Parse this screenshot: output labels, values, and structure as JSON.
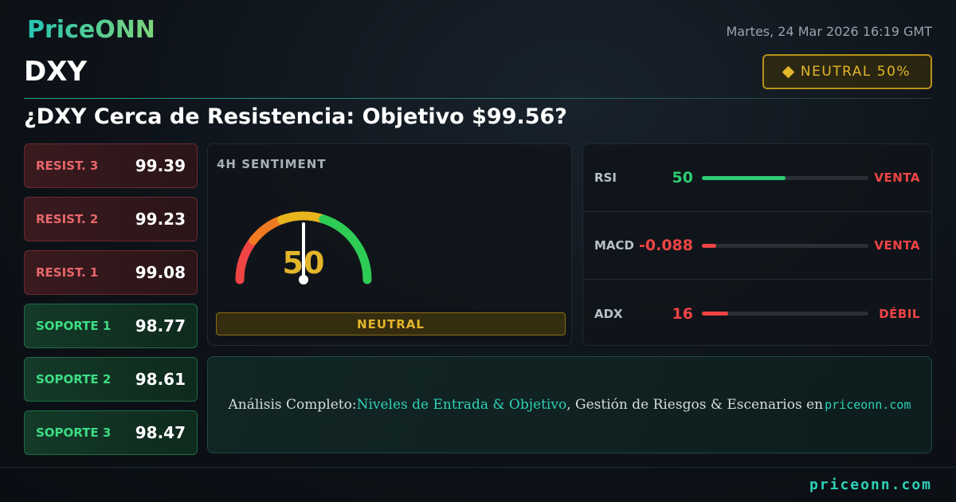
{
  "brand": "PriceONN",
  "date": "Martes, 24 Mar 2026 16:19 GMT",
  "symbol": "DXY",
  "badge": "NEUTRAL 50%",
  "headline": "¿DXY Cerca de Resistencia: Objetivo $99.56?",
  "levels": [
    {
      "label": "RESIST. 3",
      "value": 99.39,
      "color": "#e8676b"
    },
    {
      "label": "RESIST. 2",
      "value": 99.23,
      "color": "#e8676b"
    },
    {
      "label": "RESIST. 1",
      "value": 99.08,
      "color": "#e8676b"
    },
    {
      "label": "SOPORTE 1",
      "value": 98.77,
      "color": "#3ddc84"
    },
    {
      "label": "SOPORTE 2",
      "value": 98.61,
      "color": "#3ddc84"
    },
    {
      "label": "SOPORTE 3",
      "value": 98.47,
      "color": "#3ddc84"
    }
  ],
  "sentiment": {
    "title": "4H SENTIMENT",
    "value": 50,
    "label": "NEUTRAL"
  },
  "indicators": [
    {
      "name": "RSI",
      "value": 50,
      "signal": "VENTA",
      "color": "#2ecc71"
    },
    {
      "name": "MACD",
      "value": -0.088,
      "signal": "VENTA",
      "color": "#ef4444"
    },
    {
      "name": "ADX",
      "value": 16,
      "signal": "DÉBIL",
      "color": "#ef4444"
    }
  ],
  "cta": {
    "parts": [
      "Análisis Completo: ",
      "Niveles de Entrada & Objetivo",
      ", Gestión de Riesgos & Escenarios en ",
      "priceonn.com"
    ]
  },
  "footer": "priceonn.com"
}
